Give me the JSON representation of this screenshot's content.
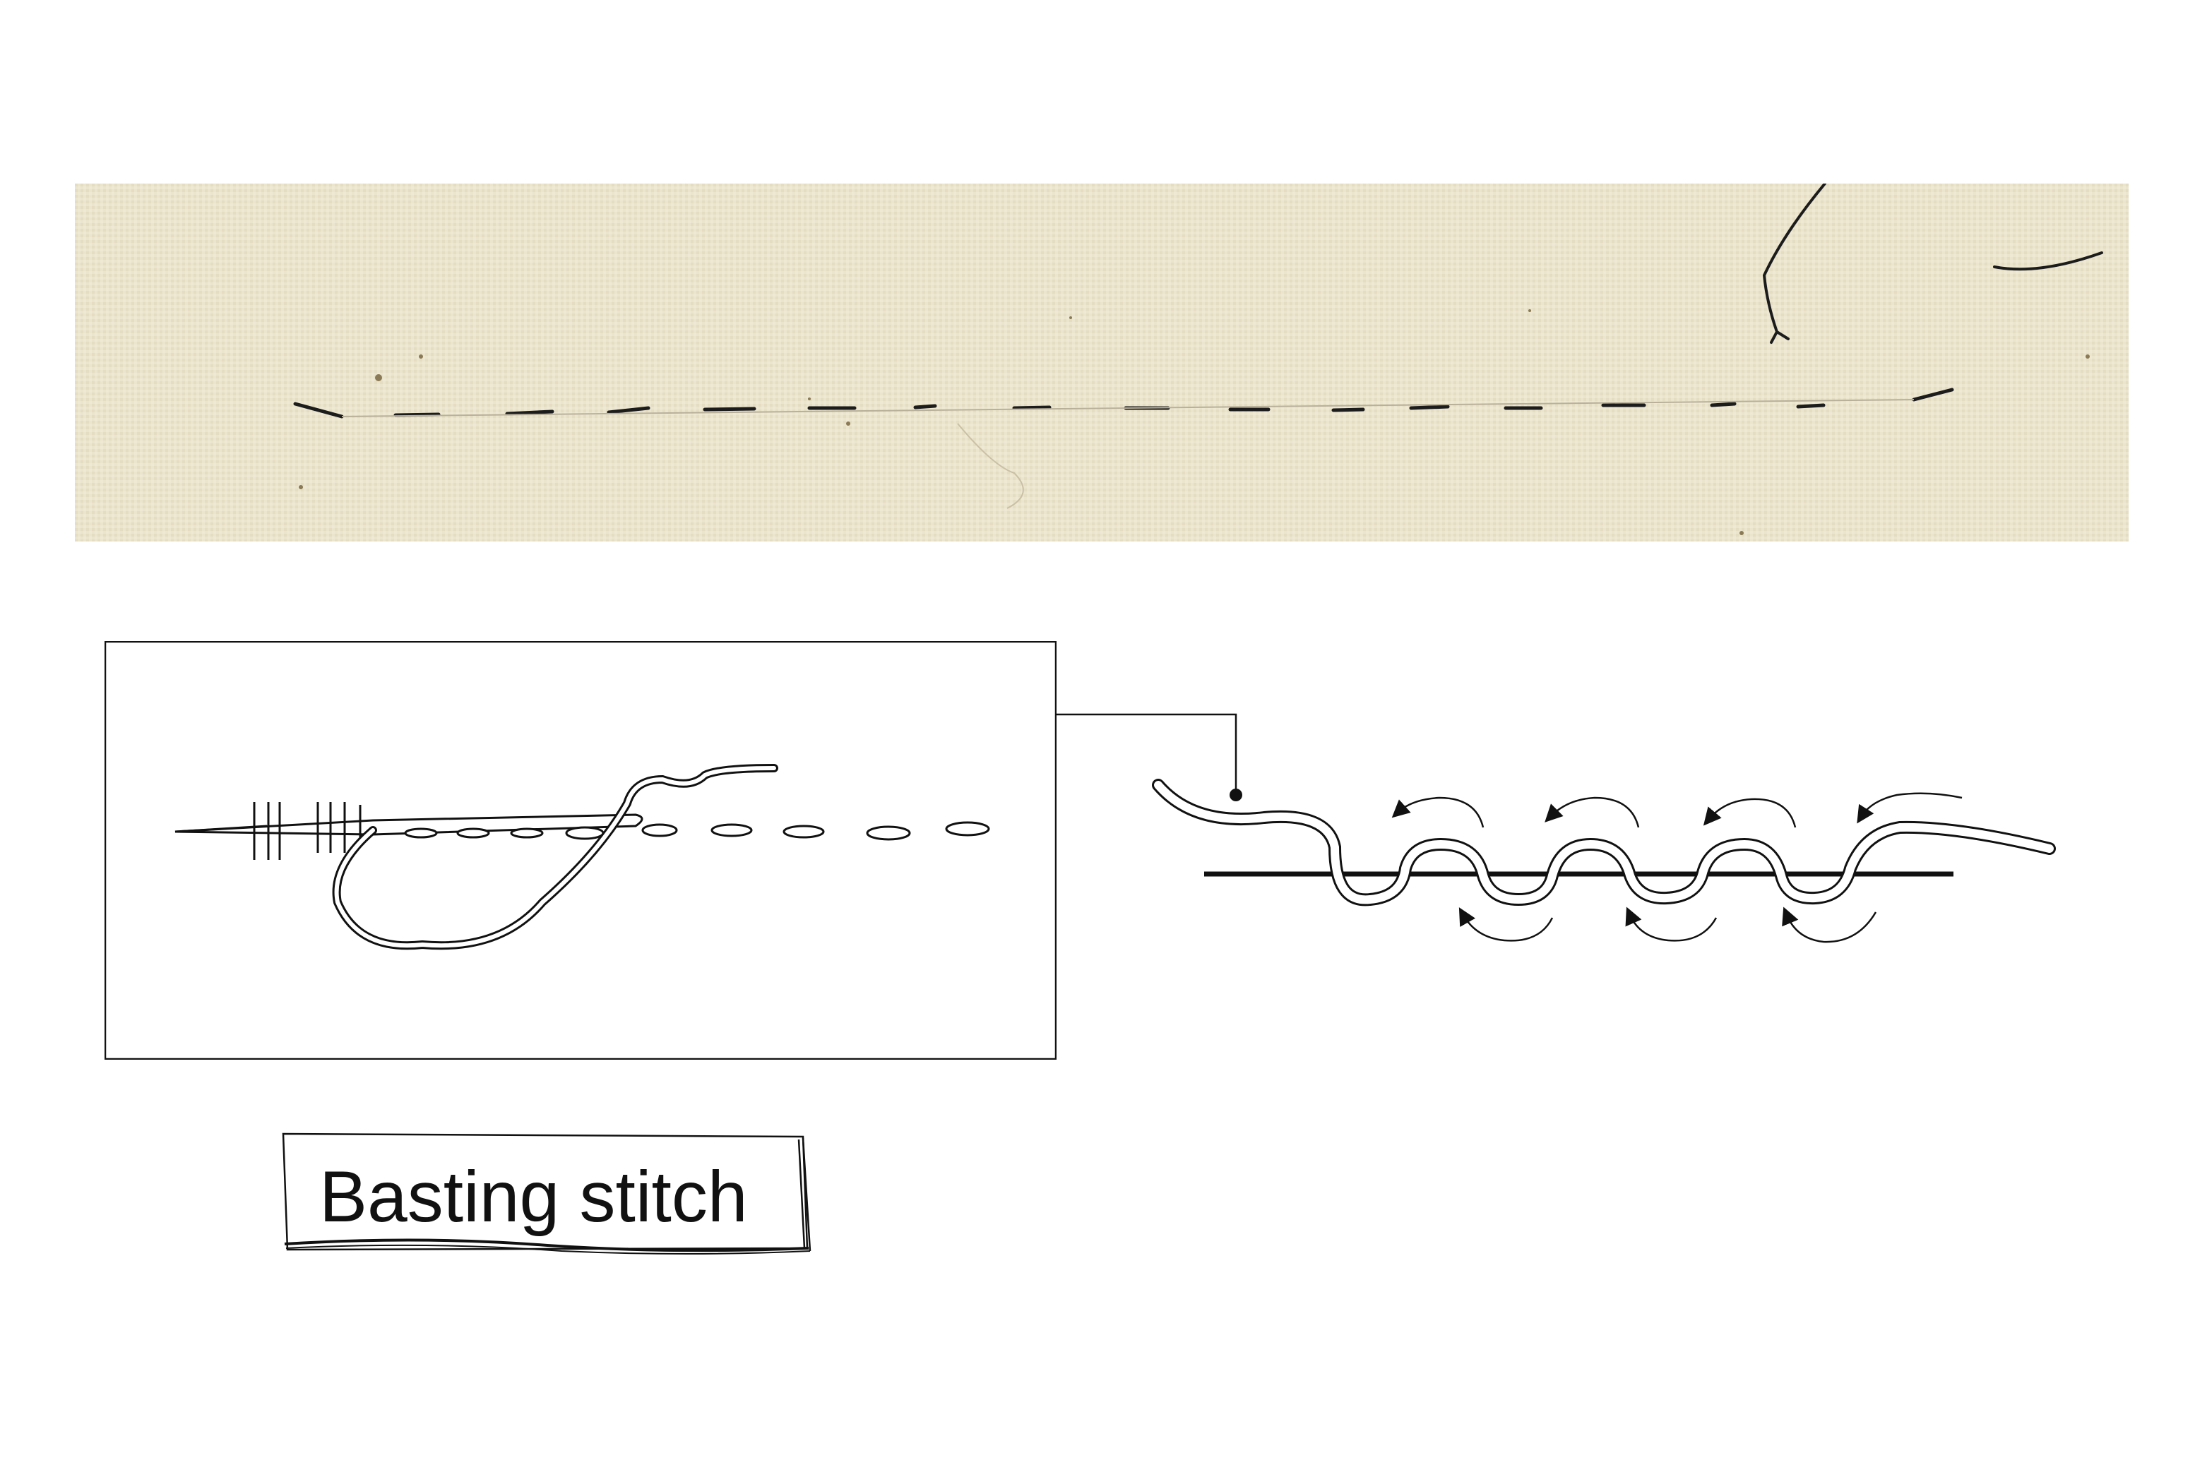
{
  "label": {
    "text": "Basting stitch"
  },
  "colors": {
    "fabric": "#ece6cf",
    "thread": "#1c1c1c",
    "line": "#111111",
    "background": "#ffffff"
  },
  "icons": {
    "needle": "needle-icon",
    "thread_loop": "thread-loop-icon",
    "direction_arrow": "curved-arrow-icon"
  }
}
